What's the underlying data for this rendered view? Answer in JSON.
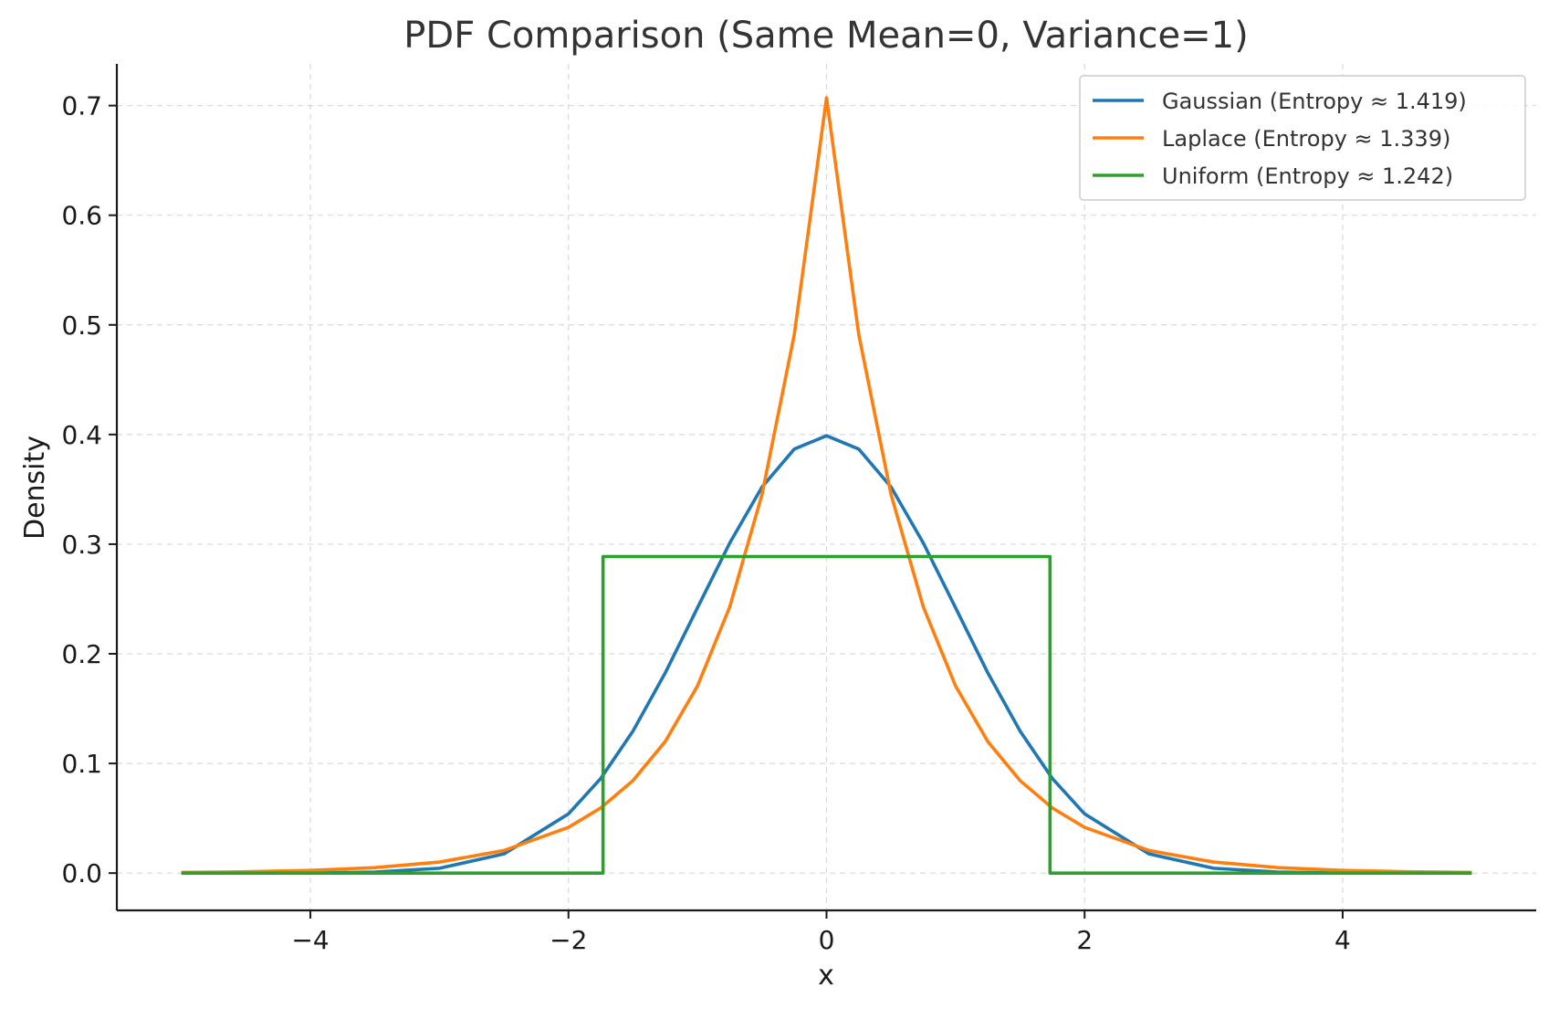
{
  "chart_data": {
    "type": "line",
    "title": "PDF Comparison (Same Mean=0, Variance=1)",
    "xlabel": "x",
    "ylabel": "Density",
    "xlim": [
      -5.5,
      5.5
    ],
    "ylim": [
      -0.034,
      0.738
    ],
    "x_ticks": [
      -4,
      -2,
      0,
      2,
      4
    ],
    "x_tick_labels": [
      "−4",
      "−2",
      "0",
      "2",
      "4"
    ],
    "y_ticks": [
      0.0,
      0.1,
      0.2,
      0.3,
      0.4,
      0.5,
      0.6,
      0.7
    ],
    "y_tick_labels": [
      "0.0",
      "0.1",
      "0.2",
      "0.3",
      "0.4",
      "0.5",
      "0.6",
      "0.7"
    ],
    "grid": true,
    "legend_position": "top-right",
    "series": [
      {
        "name": "Gaussian (Entropy ≈ 1.419)",
        "color": "#1f77b4",
        "x": [
          -5.0,
          -4.0,
          -3.5,
          -3.0,
          -2.5,
          -2.0,
          -1.75,
          -1.5,
          -1.25,
          -1.0,
          -0.75,
          -0.5,
          -0.25,
          0.0,
          0.25,
          0.5,
          0.75,
          1.0,
          1.25,
          1.5,
          1.75,
          2.0,
          2.5,
          3.0,
          3.5,
          4.0,
          5.0
        ],
        "y": [
          0.0,
          0.0001,
          0.0009,
          0.0044,
          0.0175,
          0.054,
          0.0863,
          0.1295,
          0.1826,
          0.242,
          0.3011,
          0.3521,
          0.3867,
          0.3989,
          0.3867,
          0.3521,
          0.3011,
          0.242,
          0.1826,
          0.1295,
          0.0863,
          0.054,
          0.0175,
          0.0044,
          0.0009,
          0.0001,
          0.0
        ]
      },
      {
        "name": "Laplace (Entropy ≈ 1.339)",
        "color": "#ff7f0e",
        "x": [
          -5.0,
          -4.5,
          -4.0,
          -3.5,
          -3.0,
          -2.5,
          -2.0,
          -1.75,
          -1.5,
          -1.25,
          -1.0,
          -0.75,
          -0.5,
          -0.25,
          0.0,
          0.25,
          0.5,
          0.75,
          1.0,
          1.25,
          1.5,
          1.75,
          2.0,
          2.5,
          3.0,
          3.5,
          4.0,
          4.5,
          5.0
        ],
        "y": [
          0.0006,
          0.0012,
          0.0025,
          0.005,
          0.0101,
          0.0206,
          0.0417,
          0.0594,
          0.0844,
          0.12,
          0.1707,
          0.2428,
          0.3453,
          0.4911,
          0.7071,
          0.4911,
          0.3453,
          0.2428,
          0.1707,
          0.12,
          0.0844,
          0.0594,
          0.0417,
          0.0206,
          0.0101,
          0.005,
          0.0025,
          0.0012,
          0.0006
        ]
      },
      {
        "name": "Uniform (Entropy ≈ 1.242)",
        "color": "#2ca02c",
        "x": [
          -5.0,
          -1.732,
          -1.732,
          1.732,
          1.732,
          5.0
        ],
        "y": [
          0.0,
          0.0,
          0.2887,
          0.2887,
          0.0,
          0.0
        ]
      }
    ]
  }
}
